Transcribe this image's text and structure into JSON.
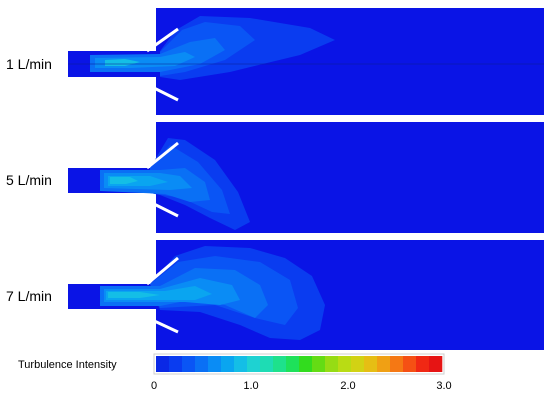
{
  "panels": [
    {
      "label": "1 L/min"
    },
    {
      "label": "5 L/min"
    },
    {
      "label": "7 L/min"
    }
  ],
  "colorbar": {
    "title": "Turbulence Intensity",
    "ticks": [
      "0",
      "1.0",
      "2.0",
      "3.0"
    ],
    "range": [
      0,
      3.0
    ],
    "colors": [
      "#0a28e6",
      "#0a3cf0",
      "#0a55f5",
      "#0a70f5",
      "#0a8cf5",
      "#0aa5f0",
      "#14bee6",
      "#1ed2d2",
      "#1edcb4",
      "#1ee18c",
      "#1ee15a",
      "#32dc1e",
      "#64dc14",
      "#96dc14",
      "#b9dc14",
      "#d2d214",
      "#e6be14",
      "#f0a014",
      "#f57814",
      "#f55014",
      "#f02814",
      "#e61414"
    ]
  },
  "colors": {
    "domain_background": "#0a14e6",
    "jet_core": "#1ec8f0"
  }
}
